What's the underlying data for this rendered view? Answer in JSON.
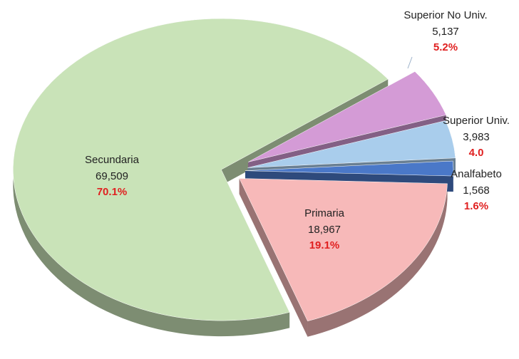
{
  "chart_data": {
    "type": "pie",
    "categories": [
      "Primaria",
      "Secundaria",
      "Superior No Univ.",
      "Superior Univ.",
      "Analfabeto"
    ],
    "values": [
      18967,
      69509,
      5137,
      3983,
      1568
    ],
    "value_labels": [
      "18,967",
      "69,509",
      "5,137",
      "3,983",
      "1,568"
    ],
    "percentages": [
      19.1,
      70.1,
      5.2,
      4.0,
      1.6
    ],
    "percentage_labels": [
      "19.1%",
      "70.1%",
      "5.2%",
      "4.0",
      "1.6%"
    ],
    "colors": [
      "#f7b9b9",
      "#c9e3b8",
      "#d49bd6",
      "#a9cdec",
      "#4a78c8"
    ]
  }
}
